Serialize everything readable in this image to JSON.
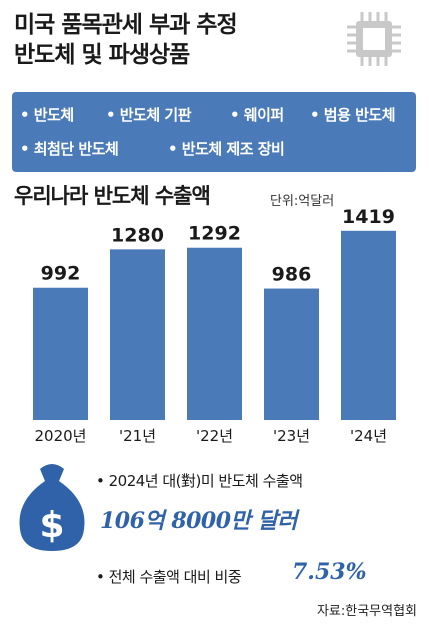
{
  "header": {
    "title_line1": "미국 품목관세 부과 추정",
    "title_line2": "반도체 및 파생상품",
    "icon": "chip-icon"
  },
  "tags": [
    "• 반도체",
    "• 반도체 기판",
    "• 웨이퍼",
    "• 범용 반도체",
    "• 최첨단 반도체",
    "• 반도체 제조 장비"
  ],
  "chart_title": "우리나라 반도체 수출액",
  "unit": "단위:억달러",
  "chart_data": {
    "type": "bar",
    "title": "우리나라 반도체 수출액",
    "unit": "단위:억달러",
    "categories": [
      "2020년",
      "'21년",
      "'22년",
      "'23년",
      "'24년"
    ],
    "values": [
      992,
      1280,
      1292,
      986,
      1419
    ],
    "ylim": [
      0,
      1500
    ],
    "grid": false,
    "bar_color": "#4a7ab8"
  },
  "stats": {
    "stat1_label": "• 2024년 대(對)미 반도체 수출액",
    "stat1_value": "106억 8000만 달러",
    "stat2_label": "• 전체 수출액 대비 비중",
    "stat2_value": "7.53%",
    "icon": "money-bag-icon"
  },
  "source": "자료:한국무역협회",
  "colors": {
    "accent": "#4a7ab8",
    "value_text": "#2f62a8"
  }
}
